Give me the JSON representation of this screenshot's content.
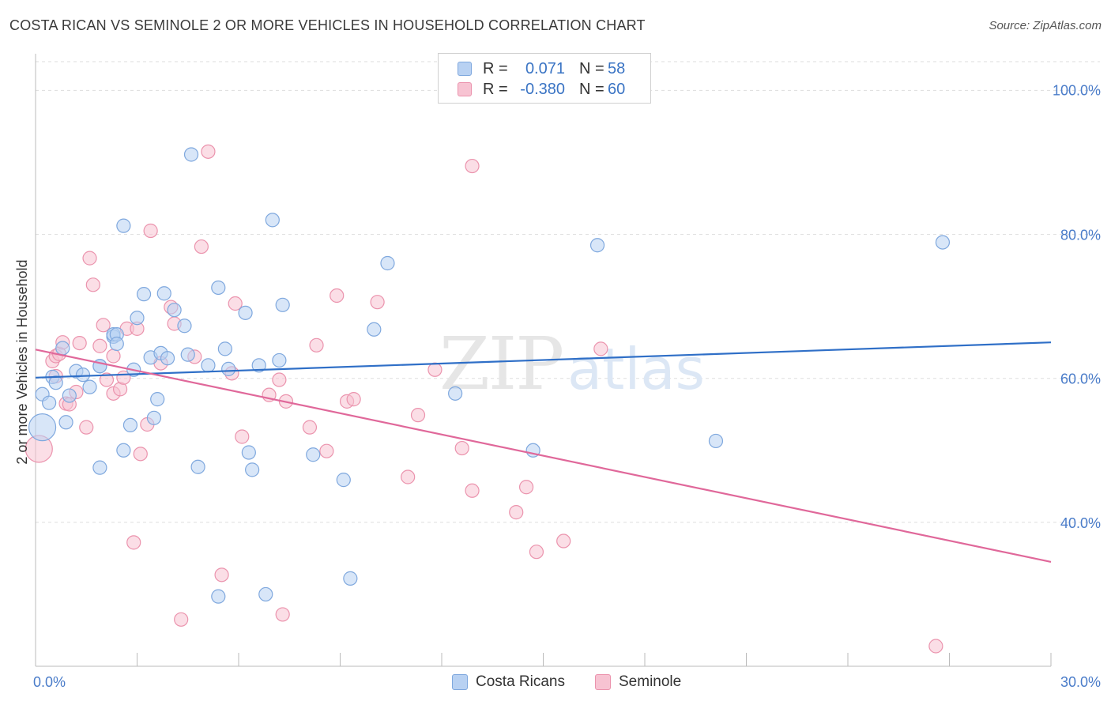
{
  "title": "COSTA RICAN VS SEMINOLE 2 OR MORE VEHICLES IN HOUSEHOLD CORRELATION CHART",
  "source": "Source: ZipAtlas.com",
  "legend": {
    "rows": [
      {
        "r_label": "R = ",
        "r_value": "0.071",
        "n_label": "N = ",
        "n_value": "58"
      },
      {
        "r_label": "R = ",
        "r_value": "-0.380",
        "n_label": "N = ",
        "n_value": "60"
      }
    ]
  },
  "bottom_legend": [
    "Costa Ricans",
    "Seminole"
  ],
  "colors": {
    "blue_fill": "#b8d1f2",
    "blue_stroke": "#7fa8de",
    "blue_line": "#2f6fc7",
    "pink_fill": "#f7c3d2",
    "pink_stroke": "#eb93ad",
    "pink_line": "#e0689a",
    "tick_text": "#4a7cc9",
    "grid": "#dddddd"
  },
  "chart_data": {
    "type": "scatter",
    "title": "COSTA RICAN VS SEMINOLE 2 OR MORE VEHICLES IN HOUSEHOLD CORRELATION CHART",
    "xlabel": "",
    "ylabel": "2 or more Vehicles in Household",
    "xlim": [
      0,
      30
    ],
    "ylim": [
      20,
      104
    ],
    "x_tick_labels": [
      "0.0%",
      "30.0%"
    ],
    "y_ticks": [
      40,
      60,
      80,
      100
    ],
    "y_tick_labels": [
      "40.0%",
      "60.0%",
      "80.0%",
      "100.0%"
    ],
    "grid": true,
    "legend_placement": "top-center",
    "watermark": {
      "zip": "ZIP",
      "atlas": "atlas"
    },
    "series": [
      {
        "name": "Costa Ricans",
        "r": 0.071,
        "n": 58,
        "trend": [
          [
            0,
            60.1
          ],
          [
            30,
            65.0
          ]
        ],
        "points": [
          [
            0.2,
            53.2,
            1
          ],
          [
            0.2,
            57.8,
            0
          ],
          [
            0.4,
            56.6,
            0
          ],
          [
            0.5,
            60.2,
            0
          ],
          [
            0.6,
            59.4,
            0
          ],
          [
            0.8,
            64.2,
            0
          ],
          [
            0.9,
            53.9,
            0
          ],
          [
            1.0,
            57.6,
            0
          ],
          [
            1.2,
            61.0,
            0
          ],
          [
            1.4,
            60.5,
            0
          ],
          [
            1.6,
            58.8,
            0
          ],
          [
            1.9,
            47.6,
            0
          ],
          [
            1.9,
            61.7,
            0
          ],
          [
            1.9,
            61.7,
            0
          ],
          [
            2.3,
            65.8,
            0
          ],
          [
            2.3,
            66.1,
            0
          ],
          [
            2.4,
            66.1,
            0
          ],
          [
            2.4,
            64.8,
            0
          ],
          [
            2.6,
            81.2,
            0
          ],
          [
            2.6,
            50.0,
            0
          ],
          [
            2.8,
            53.5,
            0
          ],
          [
            2.9,
            61.2,
            0
          ],
          [
            3.0,
            68.4,
            0
          ],
          [
            3.2,
            71.7,
            0
          ],
          [
            3.4,
            62.9,
            0
          ],
          [
            3.5,
            54.5,
            0
          ],
          [
            3.6,
            57.1,
            0
          ],
          [
            3.7,
            63.5,
            0
          ],
          [
            3.8,
            71.8,
            0
          ],
          [
            3.9,
            62.8,
            0
          ],
          [
            4.1,
            69.5,
            0
          ],
          [
            4.4,
            67.3,
            0
          ],
          [
            4.5,
            63.3,
            0
          ],
          [
            4.6,
            91.1,
            0
          ],
          [
            4.8,
            47.7,
            0
          ],
          [
            5.1,
            61.8,
            0
          ],
          [
            5.4,
            72.6,
            0
          ],
          [
            5.6,
            64.1,
            0
          ],
          [
            5.7,
            61.3,
            0
          ],
          [
            6.2,
            69.1,
            0
          ],
          [
            6.3,
            49.7,
            0
          ],
          [
            6.4,
            47.3,
            0
          ],
          [
            6.6,
            61.8,
            0
          ],
          [
            6.8,
            30.0,
            0
          ],
          [
            7.0,
            82.0,
            0
          ],
          [
            7.2,
            62.5,
            0
          ],
          [
            7.3,
            70.2,
            0
          ],
          [
            8.2,
            49.4,
            0
          ],
          [
            9.1,
            45.9,
            0
          ],
          [
            9.3,
            32.2,
            0
          ],
          [
            10.0,
            66.8,
            0
          ],
          [
            10.4,
            76.0,
            0
          ],
          [
            12.4,
            57.9,
            0
          ],
          [
            14.7,
            50.0,
            0
          ],
          [
            16.6,
            78.5,
            0
          ],
          [
            20.1,
            51.3,
            0
          ],
          [
            26.8,
            78.9,
            0
          ],
          [
            5.4,
            29.7,
            0
          ]
        ]
      },
      {
        "name": "Seminole",
        "r": -0.38,
        "n": 60,
        "trend": [
          [
            0,
            64.0
          ],
          [
            30,
            34.5
          ]
        ],
        "points": [
          [
            0.1,
            50.2,
            1
          ],
          [
            0.5,
            62.4,
            0
          ],
          [
            0.6,
            60.3,
            0
          ],
          [
            0.6,
            63.1,
            0
          ],
          [
            0.7,
            63.4,
            0
          ],
          [
            0.8,
            65.0,
            0
          ],
          [
            0.9,
            56.5,
            0
          ],
          [
            1.0,
            56.4,
            0
          ],
          [
            1.2,
            58.1,
            0
          ],
          [
            1.3,
            64.9,
            0
          ],
          [
            1.5,
            53.2,
            0
          ],
          [
            1.6,
            76.7,
            0
          ],
          [
            1.7,
            73.0,
            0
          ],
          [
            1.9,
            64.5,
            0
          ],
          [
            2.0,
            67.4,
            0
          ],
          [
            2.1,
            59.8,
            0
          ],
          [
            2.3,
            63.1,
            0
          ],
          [
            2.3,
            57.9,
            0
          ],
          [
            2.5,
            58.5,
            0
          ],
          [
            2.6,
            60.1,
            0
          ],
          [
            2.7,
            66.9,
            0
          ],
          [
            2.9,
            37.2,
            0
          ],
          [
            3.0,
            66.9,
            0
          ],
          [
            3.1,
            49.5,
            0
          ],
          [
            3.3,
            53.6,
            0
          ],
          [
            3.4,
            80.5,
            0
          ],
          [
            3.7,
            62.1,
            0
          ],
          [
            4.0,
            69.9,
            0
          ],
          [
            4.1,
            67.6,
            0
          ],
          [
            4.3,
            26.5,
            0
          ],
          [
            4.7,
            63.0,
            0
          ],
          [
            4.9,
            78.3,
            0
          ],
          [
            5.1,
            91.5,
            0
          ],
          [
            5.5,
            32.7,
            0
          ],
          [
            5.8,
            60.7,
            0
          ],
          [
            5.9,
            70.4,
            0
          ],
          [
            6.1,
            51.9,
            0
          ],
          [
            6.9,
            57.7,
            0
          ],
          [
            7.2,
            59.8,
            0
          ],
          [
            7.3,
            27.2,
            0
          ],
          [
            7.4,
            56.8,
            0
          ],
          [
            8.1,
            53.2,
            0
          ],
          [
            8.3,
            64.6,
            0
          ],
          [
            8.6,
            49.9,
            0
          ],
          [
            8.9,
            71.5,
            0
          ],
          [
            9.2,
            56.8,
            0
          ],
          [
            9.4,
            57.1,
            0
          ],
          [
            10.1,
            70.6,
            0
          ],
          [
            11.0,
            46.3,
            0
          ],
          [
            11.3,
            54.9,
            0
          ],
          [
            11.8,
            61.2,
            0
          ],
          [
            12.6,
            50.3,
            0
          ],
          [
            12.9,
            89.5,
            0
          ],
          [
            12.9,
            44.4,
            0
          ],
          [
            14.2,
            41.4,
            0
          ],
          [
            14.5,
            44.9,
            0
          ],
          [
            14.8,
            35.9,
            0
          ],
          [
            15.6,
            37.4,
            0
          ],
          [
            16.7,
            64.1,
            0
          ],
          [
            26.6,
            22.8,
            0
          ]
        ]
      }
    ]
  }
}
